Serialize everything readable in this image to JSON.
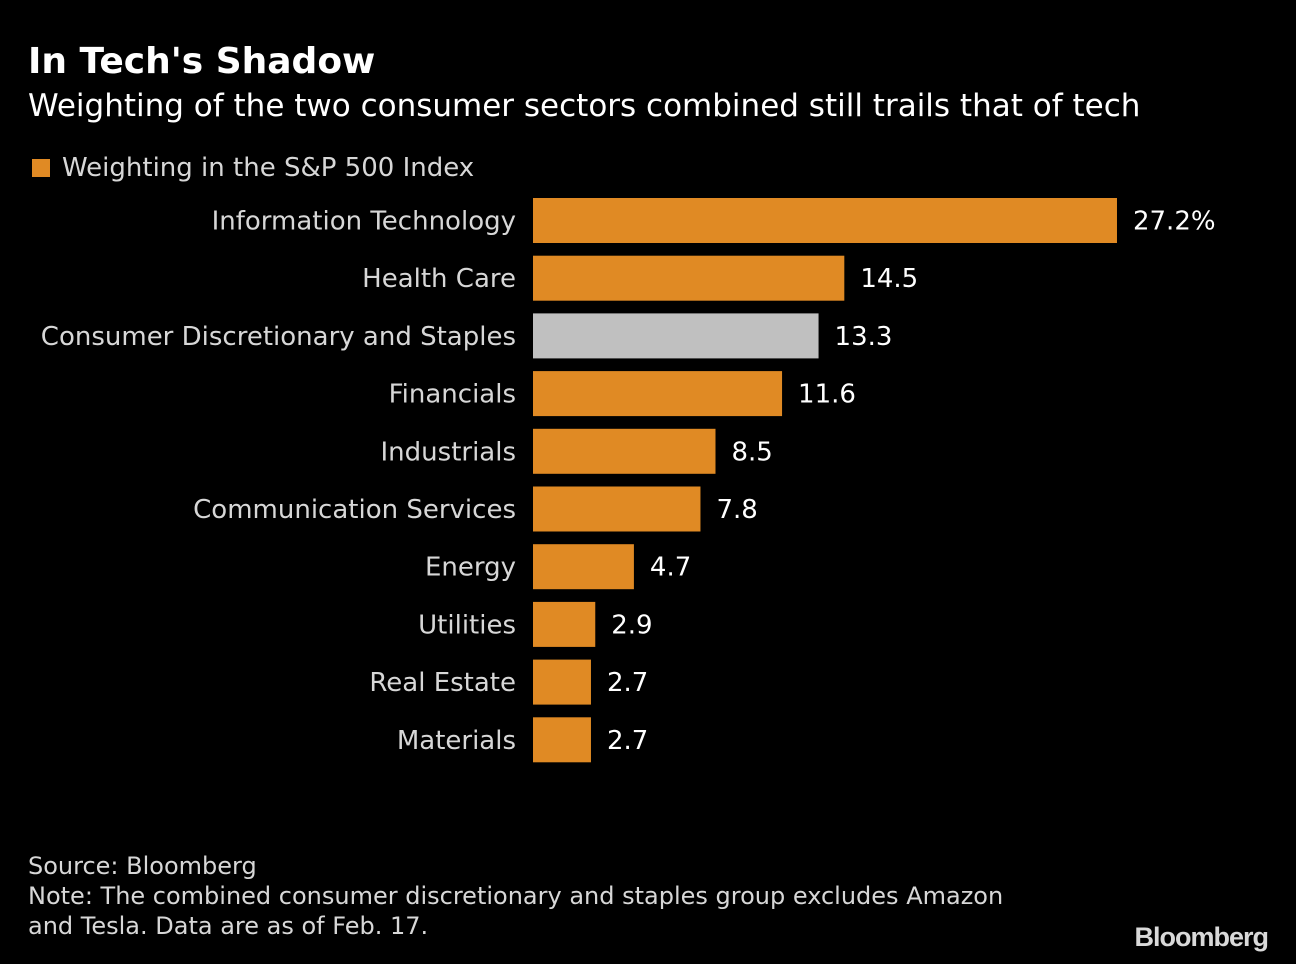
{
  "header": {
    "title": "In Tech's Shadow",
    "subtitle": "Weighting of the two consumer sectors combined still trails that of tech"
  },
  "legend": {
    "label": "Weighting in the S&P 500 Index",
    "color": "#e08a24"
  },
  "chart_data": {
    "type": "bar",
    "orientation": "horizontal",
    "title": "In Tech's Shadow",
    "subtitle": "Weighting of the two consumer sectors combined still trails that of tech",
    "categories": [
      "Information Technology",
      "Health Care",
      "Consumer Discretionary and Staples",
      "Financials",
      "Industrials",
      "Communication Services",
      "Energy",
      "Utilities",
      "Real Estate",
      "Materials"
    ],
    "series": [
      {
        "name": "Weighting in the S&P 500 Index",
        "values": [
          27.2,
          14.5,
          13.3,
          11.6,
          8.5,
          7.8,
          4.7,
          2.9,
          2.7,
          2.7
        ]
      }
    ],
    "value_labels": [
      "27.2%",
      "14.5",
      "13.3",
      "11.6",
      "8.5",
      "7.8",
      "4.7",
      "2.9",
      "2.7",
      "2.7"
    ],
    "bar_colors": [
      "#e08a24",
      "#e08a24",
      "#c0c0c0",
      "#e08a24",
      "#e08a24",
      "#e08a24",
      "#e08a24",
      "#e08a24",
      "#e08a24",
      "#e08a24"
    ],
    "highlight_color": "#c0c0c0",
    "xlim": [
      0,
      27.2
    ],
    "grid": false,
    "legend_position": "top-left"
  },
  "footer": {
    "source": "Source: Bloomberg",
    "note": "Note: The combined consumer discretionary and staples group excludes Amazon and Tesla. Data are as of Feb. 17.",
    "logo": "Bloomberg"
  },
  "colors": {
    "background": "#000000",
    "text": "#ffffff",
    "muted_text": "#d7d7d7",
    "bar": "#e08a24",
    "highlight_bar": "#c0c0c0"
  }
}
